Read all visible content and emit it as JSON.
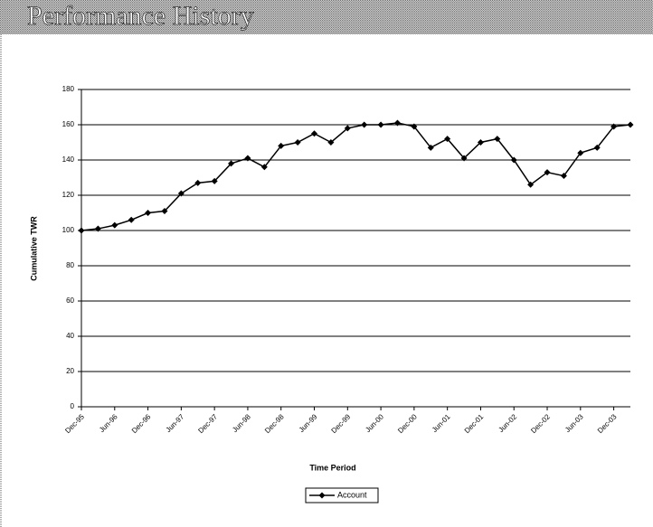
{
  "chart_data": {
    "type": "line",
    "title": "Performance History",
    "x_label": "Time Period",
    "y_label": "Cumulative TWR",
    "categories": [
      "Dec-95",
      null,
      "Jun-96",
      null,
      "Dec-96",
      null,
      "Jun-97",
      null,
      "Dec-97",
      null,
      "Jun-98",
      null,
      "Dec-98",
      null,
      "Jun-99",
      null,
      "Dec-99",
      null,
      "Jun-00",
      null,
      "Dec-00",
      null,
      "Jun-01",
      null,
      "Dec-01",
      null,
      "Jun-02",
      null,
      "Dec-02",
      null,
      "Jun-03",
      null,
      "Dec-03",
      null
    ],
    "series": [
      {
        "name": "Account",
        "color": "#000000",
        "values": [
          100,
          101,
          103,
          106,
          110,
          111,
          121,
          127,
          128,
          138,
          141,
          136,
          148,
          150,
          155,
          150,
          158,
          160,
          160,
          161,
          159,
          147,
          152,
          141,
          150,
          152,
          140,
          126,
          133,
          131,
          144,
          147,
          159,
          160
        ]
      }
    ],
    "ylim": [
      0,
      180
    ],
    "yticks": [
      0,
      20,
      40,
      60,
      80,
      100,
      120,
      140,
      160,
      180
    ],
    "grid": true,
    "legend": "bottom"
  }
}
